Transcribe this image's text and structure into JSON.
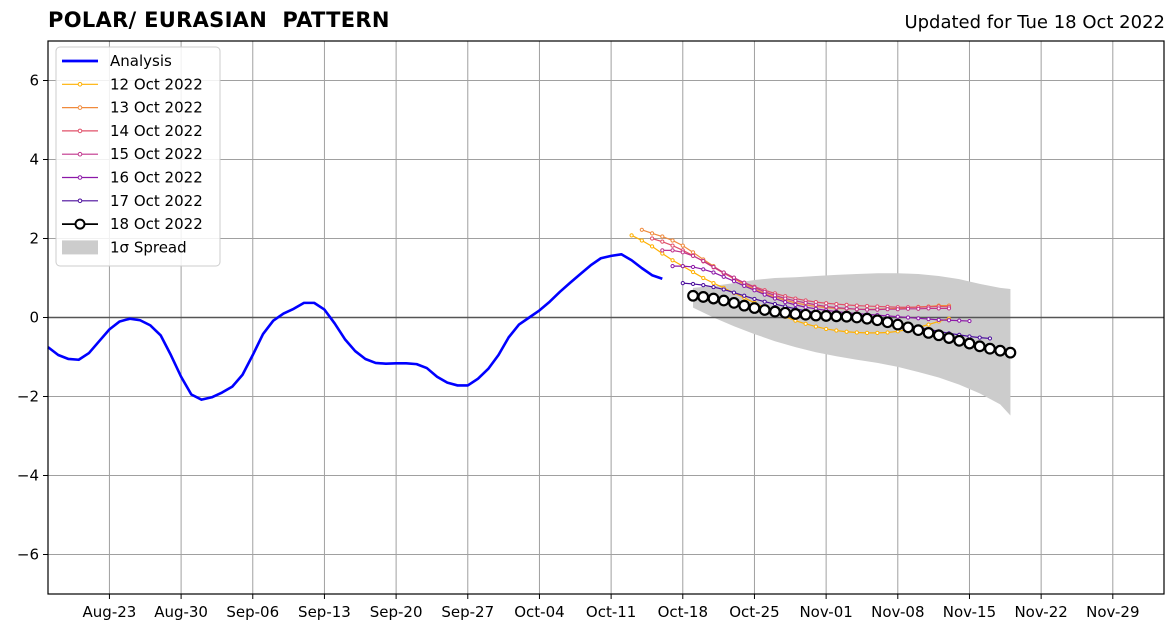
{
  "title": "POLAR/ EURASIAN  PATTERN",
  "updated": "Updated for Tue 18 Oct 2022",
  "chart_data": {
    "type": "line",
    "ylim": [
      -7,
      7
    ],
    "xlim": [
      "2022-08-17",
      "2022-12-04"
    ],
    "yticks": [
      -6,
      -4,
      -2,
      0,
      2,
      4,
      6
    ],
    "ytick_labels": [
      "−6",
      "−4",
      "−2",
      "0",
      "2",
      "4",
      "6"
    ],
    "xticks": [
      {
        "date": "2022-08-23",
        "label": "Aug-23"
      },
      {
        "date": "2022-08-30",
        "label": "Aug-30"
      },
      {
        "date": "2022-09-06",
        "label": "Sep-06"
      },
      {
        "date": "2022-09-13",
        "label": "Sep-13"
      },
      {
        "date": "2022-09-20",
        "label": "Sep-20"
      },
      {
        "date": "2022-09-27",
        "label": "Sep-27"
      },
      {
        "date": "2022-10-04",
        "label": "Oct-04"
      },
      {
        "date": "2022-10-11",
        "label": "Oct-11"
      },
      {
        "date": "2022-10-18",
        "label": "Oct-18"
      },
      {
        "date": "2022-10-25",
        "label": "Oct-25"
      },
      {
        "date": "2022-11-01",
        "label": "Nov-01"
      },
      {
        "date": "2022-11-08",
        "label": "Nov-08"
      },
      {
        "date": "2022-11-15",
        "label": "Nov-15"
      },
      {
        "date": "2022-11-22",
        "label": "Nov-22"
      },
      {
        "date": "2022-11-29",
        "label": "Nov-29"
      }
    ],
    "grid": true,
    "legend_position": "upper-left",
    "analysis": {
      "name": "Analysis",
      "color": "#0000ff",
      "start": "2022-08-17",
      "values": [
        -0.75,
        -0.95,
        -1.05,
        -1.07,
        -0.9,
        -0.6,
        -0.3,
        -0.1,
        -0.03,
        -0.07,
        -0.2,
        -0.45,
        -0.95,
        -1.5,
        -1.95,
        -2.08,
        -2.02,
        -1.9,
        -1.75,
        -1.45,
        -0.95,
        -0.42,
        -0.08,
        0.1,
        0.22,
        0.37,
        0.37,
        0.2,
        -0.15,
        -0.55,
        -0.85,
        -1.05,
        -1.15,
        -1.17,
        -1.16,
        -1.16,
        -1.18,
        -1.28,
        -1.5,
        -1.65,
        -1.72,
        -1.72,
        -1.55,
        -1.3,
        -0.95,
        -0.5,
        -0.18,
        0.0,
        0.18,
        0.4,
        0.65,
        0.88,
        1.1,
        1.32,
        1.5,
        1.56,
        1.6,
        1.45,
        1.25,
        1.07,
        0.98
      ]
    },
    "spread": {
      "name": "1σ Spread",
      "color": "#cccccc",
      "start": "2022-10-19",
      "days": [
        0,
        2,
        4,
        6,
        8,
        10,
        12,
        14,
        16,
        18,
        20,
        22,
        24,
        26,
        28,
        30,
        31
      ],
      "upper": [
        0.75,
        0.8,
        0.87,
        0.95,
        1.0,
        1.02,
        1.05,
        1.08,
        1.1,
        1.12,
        1.12,
        1.1,
        1.05,
        0.97,
        0.85,
        0.75,
        0.72
      ],
      "lower": [
        0.25,
        0.0,
        -0.22,
        -0.42,
        -0.6,
        -0.75,
        -0.88,
        -0.98,
        -1.07,
        -1.15,
        -1.25,
        -1.38,
        -1.52,
        -1.7,
        -1.92,
        -2.2,
        -2.48
      ]
    },
    "series": [
      {
        "name": "12 Oct 2022",
        "color": "#ffb000",
        "start": "2022-10-13",
        "values": [
          2.08,
          1.95,
          1.8,
          1.62,
          1.45,
          1.3,
          1.15,
          1.0,
          0.87,
          0.75,
          0.62,
          0.5,
          0.37,
          0.25,
          0.13,
          0.02,
          -0.08,
          -0.16,
          -0.23,
          -0.29,
          -0.33,
          -0.36,
          -0.38,
          -0.39,
          -0.39,
          -0.38,
          -0.35,
          -0.3,
          -0.25,
          -0.18,
          -0.1,
          -0.03
        ]
      },
      {
        "name": "13 Oct 2022",
        "color": "#f08a3c",
        "start": "2022-10-14",
        "values": [
          2.22,
          2.13,
          2.05,
          1.95,
          1.82,
          1.65,
          1.47,
          1.3,
          1.13,
          0.98,
          0.84,
          0.72,
          0.61,
          0.52,
          0.44,
          0.37,
          0.32,
          0.28,
          0.25,
          0.23,
          0.22,
          0.21,
          0.21,
          0.21,
          0.22,
          0.23,
          0.25,
          0.27,
          0.28,
          0.3,
          0.3
        ]
      },
      {
        "name": "14 Oct 2022",
        "color": "#e0506a",
        "start": "2022-10-15",
        "values": [
          2.0,
          1.92,
          1.82,
          1.7,
          1.57,
          1.42,
          1.27,
          1.12,
          0.99,
          0.88,
          0.78,
          0.69,
          0.61,
          0.54,
          0.48,
          0.43,
          0.39,
          0.36,
          0.34,
          0.32,
          0.3,
          0.29,
          0.28,
          0.27,
          0.26,
          0.26,
          0.26,
          0.27,
          0.28,
          0.27
        ]
      },
      {
        "name": "15 Oct 2022",
        "color": "#c0348c",
        "start": "2022-10-16",
        "values": [
          1.7,
          1.7,
          1.65,
          1.56,
          1.43,
          1.28,
          1.14,
          1.01,
          0.88,
          0.76,
          0.65,
          0.56,
          0.48,
          0.42,
          0.37,
          0.32,
          0.28,
          0.25,
          0.23,
          0.21,
          0.2,
          0.2,
          0.21,
          0.21,
          0.22,
          0.22,
          0.23,
          0.23,
          0.23
        ]
      },
      {
        "name": "16 Oct 2022",
        "color": "#8c18a8",
        "start": "2022-10-17",
        "values": [
          1.3,
          1.3,
          1.28,
          1.22,
          1.14,
          1.03,
          0.92,
          0.8,
          0.69,
          0.58,
          0.48,
          0.39,
          0.32,
          0.26,
          0.22,
          0.18,
          0.15,
          0.12,
          0.1,
          0.08,
          0.06,
          0.04,
          0.02,
          0.0,
          -0.02,
          -0.04,
          -0.06,
          -0.07,
          -0.08,
          -0.09
        ]
      },
      {
        "name": "17 Oct 2022",
        "color": "#4a0c9c",
        "start": "2022-10-18",
        "values": [
          0.87,
          0.85,
          0.82,
          0.77,
          0.71,
          0.63,
          0.55,
          0.47,
          0.4,
          0.34,
          0.28,
          0.22,
          0.17,
          0.12,
          0.08,
          0.04,
          0.0,
          -0.03,
          -0.06,
          -0.09,
          -0.12,
          -0.16,
          -0.2,
          -0.25,
          -0.3,
          -0.35,
          -0.4,
          -0.44,
          -0.48,
          -0.51,
          -0.53
        ]
      },
      {
        "name": "18 Oct 2022",
        "color": "#000000",
        "start": "2022-10-19",
        "values": [
          0.55,
          0.52,
          0.48,
          0.43,
          0.37,
          0.3,
          0.24,
          0.19,
          0.15,
          0.12,
          0.09,
          0.07,
          0.05,
          0.04,
          0.03,
          0.02,
          0.0,
          -0.03,
          -0.07,
          -0.12,
          -0.18,
          -0.25,
          -0.32,
          -0.39,
          -0.45,
          -0.52,
          -0.59,
          -0.66,
          -0.73,
          -0.79,
          -0.84,
          -0.89
        ]
      }
    ]
  }
}
